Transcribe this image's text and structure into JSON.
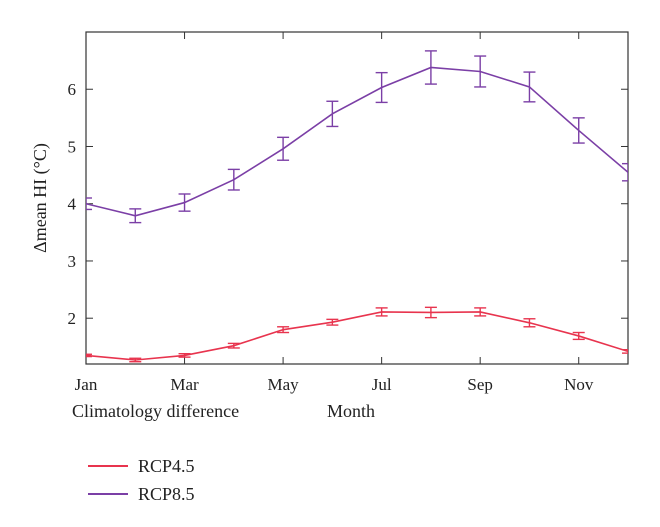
{
  "chart_data": {
    "type": "line",
    "xlabel": "Month",
    "ylabel": "Δmean HI (°C)",
    "xlim": [
      1,
      12
    ],
    "ylim": [
      1.2,
      7
    ],
    "x_tick_labels": [
      "Jan",
      "Mar",
      "May",
      "Jul",
      "Sep",
      "Nov"
    ],
    "x_tick_values": [
      1,
      3,
      5,
      7,
      9,
      11
    ],
    "y_ticks": [
      2,
      3,
      4,
      5,
      6
    ],
    "grid": false,
    "legend_placement": "below",
    "series": [
      {
        "name": "RCP4.5",
        "color": "#e8344e",
        "x": [
          1,
          2,
          3,
          4,
          5,
          6,
          7,
          8,
          9,
          10,
          11,
          12
        ],
        "values": [
          1.35,
          1.27,
          1.35,
          1.52,
          1.8,
          1.93,
          2.11,
          2.1,
          2.11,
          1.92,
          1.69,
          1.42
        ],
        "error": [
          0.02,
          0.03,
          0.03,
          0.04,
          0.05,
          0.05,
          0.07,
          0.09,
          0.07,
          0.07,
          0.06,
          0.03
        ]
      },
      {
        "name": "RCP8.5",
        "color": "#7b3fa6",
        "x": [
          1,
          2,
          3,
          4,
          5,
          6,
          7,
          8,
          9,
          10,
          11,
          12
        ],
        "values": [
          4.0,
          3.79,
          4.02,
          4.42,
          4.96,
          5.57,
          6.03,
          6.38,
          6.31,
          6.04,
          5.28,
          4.55
        ],
        "error": [
          0.1,
          0.12,
          0.15,
          0.18,
          0.2,
          0.22,
          0.26,
          0.29,
          0.27,
          0.26,
          0.22,
          0.15
        ]
      }
    ]
  },
  "caption": {
    "left_text": "Climatology difference"
  },
  "legend": {
    "items": [
      {
        "label": "RCP4.5",
        "color": "#e8344e"
      },
      {
        "label": "RCP8.5",
        "color": "#7b3fa6"
      }
    ]
  }
}
